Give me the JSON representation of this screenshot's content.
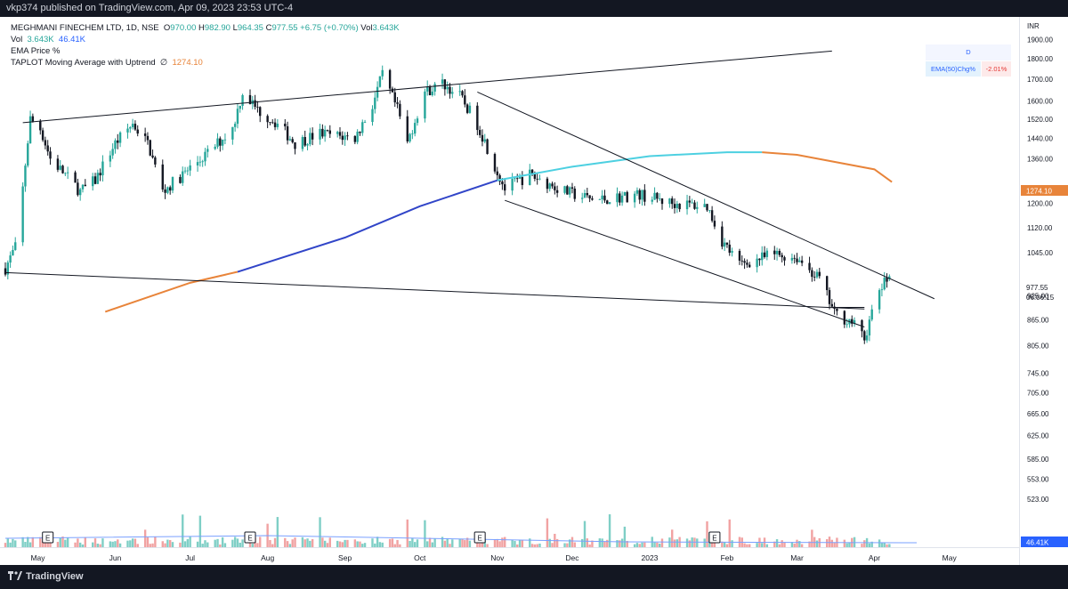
{
  "header": {
    "published_text": "vkp374 published on TradingView.com, Apr 09, 2023 23:53 UTC-4"
  },
  "legend": {
    "symbol": "MEGHMANI FINECHEM LTD, 1D, NSE",
    "open_label": "O",
    "open": "970.00",
    "high_label": "H",
    "high": "982.90",
    "low_label": "L",
    "low": "964.35",
    "close_label": "C",
    "close": "977.55",
    "change": "+6.75 (+0.70%)",
    "vol_label": "Vol",
    "vol_value": "3.643K",
    "vol_row_label": "Vol",
    "vol_row_v1": "3.643K",
    "vol_row_v2": "46.41K",
    "ema_price": "EMA Price %",
    "taplot_label": "TAPLOT Moving Average with Uptrend",
    "taplot_symbol": "∅",
    "taplot_value": "1274.10"
  },
  "ema_table": {
    "header": "D",
    "label": "EMA(50)Chg%",
    "value": "-2.01%"
  },
  "price_axis": {
    "currency": "INR",
    "ticks": [
      "1900.00",
      "1800.00",
      "1700.00",
      "1600.00",
      "1520.00",
      "1440.00",
      "1360.00",
      "1200.00",
      "1120.00",
      "1045.00",
      "925.00",
      "865.00",
      "805.00",
      "745.00",
      "705.00",
      "665.00",
      "625.00",
      "585.00",
      "553.00",
      "523.00"
    ],
    "last_price": "977.55",
    "countdown": "06:06:15",
    "ma_badge": "1274.10",
    "vol_badge": "46.41K"
  },
  "time_axis": {
    "labels": [
      "May",
      "Jun",
      "Jul",
      "Aug",
      "Sep",
      "Oct",
      "Nov",
      "Dec",
      "2023",
      "Feb",
      "Mar",
      "Apr",
      "May"
    ]
  },
  "earnings_markers": [
    "E",
    "E",
    "E",
    "E"
  ],
  "footer": {
    "brand": "TradingView"
  },
  "colors": {
    "up": "#26a69a",
    "down": "#131722",
    "ma_orange": "#e8843a",
    "ma_blue": "#3145c8",
    "ma_cyan": "#4dd0e1",
    "vol_up": "#7fcfc6",
    "vol_down": "#f1a2a2",
    "accent": "#2962ff"
  },
  "chart_data": {
    "type": "candlestick",
    "title": "MEGHMANI FINECHEM LTD, 1D, NSE",
    "ylabel": "INR",
    "yscale": "log",
    "ylim": [
      500,
      2000
    ],
    "x_range": [
      "2022-04-18",
      "2023-05-20"
    ],
    "price_path": [
      [
        "2022-04-18",
        1000
      ],
      [
        "2022-04-22",
        1060
      ],
      [
        "2022-04-25",
        1250
      ],
      [
        "2022-04-28",
        1520
      ],
      [
        "2022-05-02",
        1480
      ],
      [
        "2022-05-06",
        1360
      ],
      [
        "2022-05-12",
        1300
      ],
      [
        "2022-05-18",
        1240
      ],
      [
        "2022-05-24",
        1280
      ],
      [
        "2022-06-01",
        1420
      ],
      [
        "2022-06-08",
        1500
      ],
      [
        "2022-06-14",
        1420
      ],
      [
        "2022-06-20",
        1240
      ],
      [
        "2022-06-28",
        1300
      ],
      [
        "2022-07-08",
        1380
      ],
      [
        "2022-07-18",
        1480
      ],
      [
        "2022-07-22",
        1640
      ],
      [
        "2022-07-28",
        1560
      ],
      [
        "2022-08-05",
        1500
      ],
      [
        "2022-08-12",
        1420
      ],
      [
        "2022-08-22",
        1460
      ],
      [
        "2022-09-05",
        1440
      ],
      [
        "2022-09-12",
        1580
      ],
      [
        "2022-09-16",
        1720
      ],
      [
        "2022-09-22",
        1560
      ],
      [
        "2022-09-26",
        1420
      ],
      [
        "2022-10-03",
        1640
      ],
      [
        "2022-10-10",
        1680
      ],
      [
        "2022-10-17",
        1620
      ],
      [
        "2022-10-24",
        1500
      ],
      [
        "2022-10-31",
        1330
      ],
      [
        "2022-11-04",
        1250
      ],
      [
        "2022-11-14",
        1300
      ],
      [
        "2022-11-28",
        1240
      ],
      [
        "2022-12-10",
        1210
      ],
      [
        "2022-12-28",
        1230
      ],
      [
        "2023-01-10",
        1200
      ],
      [
        "2023-01-24",
        1190
      ],
      [
        "2023-01-30",
        1080
      ],
      [
        "2023-02-06",
        1010
      ],
      [
        "2023-02-20",
        1040
      ],
      [
        "2023-03-01",
        1030
      ],
      [
        "2023-03-10",
        970
      ],
      [
        "2023-03-16",
        880
      ],
      [
        "2023-03-23",
        860
      ],
      [
        "2023-03-28",
        820
      ],
      [
        "2023-04-03",
        940
      ],
      [
        "2023-04-07",
        977.55
      ]
    ],
    "last_candle": {
      "open": 970.0,
      "high": 982.9,
      "low": 964.35,
      "close": 977.55,
      "volume": "3.643K"
    },
    "moving_average": {
      "name": "TAPLOT Moving Average with Uptrend",
      "last_value": 1274.1,
      "points": [
        [
          "2022-05-28",
          885
        ],
        [
          "2022-07-01",
          960
        ],
        [
          "2022-07-20",
          990
        ],
        [
          "2022-09-01",
          1090
        ],
        [
          "2022-10-01",
          1190
        ],
        [
          "2022-11-01",
          1280
        ],
        [
          "2022-12-01",
          1330
        ],
        [
          "2023-01-01",
          1370
        ],
        [
          "2023-02-01",
          1385
        ],
        [
          "2023-02-15",
          1385
        ],
        [
          "2023-03-01",
          1375
        ],
        [
          "2023-04-01",
          1320
        ],
        [
          "2023-04-08",
          1274.1
        ]
      ]
    },
    "trendlines": [
      {
        "from": [
          "2022-04-25",
          1505
        ],
        "to": [
          "2023-03-15",
          1840
        ]
      },
      {
        "from": [
          "2022-04-18",
          988
        ],
        "to": [
          "2023-03-28",
          892
        ]
      },
      {
        "from": [
          "2022-10-24",
          1640
        ],
        "to": [
          "2023-04-25",
          918
        ]
      },
      {
        "from": [
          "2022-11-04",
          1210
        ],
        "to": [
          "2023-03-28",
          848
        ]
      }
    ],
    "volume_avg": "46.41K",
    "earnings_dates": [
      "2022-05-05",
      "2022-07-25",
      "2022-10-25",
      "2023-01-27"
    ]
  }
}
